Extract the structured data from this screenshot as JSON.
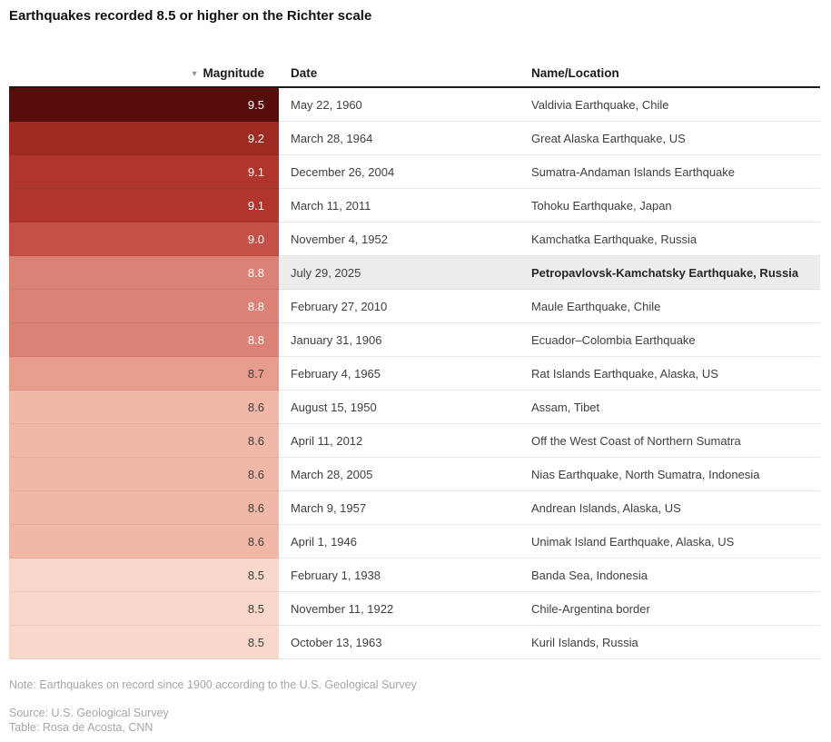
{
  "title": "Earthquakes recorded 8.5 or higher on the Richter scale",
  "header": {
    "sort_icon": "▼",
    "magnitude_label": "Magnitude",
    "date_label": "Date",
    "name_label": "Name/Location"
  },
  "footer": {
    "note": "Note: Earthquakes on record since 1900 according to the U.S. Geological Survey",
    "source": "Source: U.S. Geological Survey",
    "credit": "Table: Rosa de Acosta, CNN"
  },
  "colors": {
    "header_rule": "#1a1a1a",
    "row_divider": "#e9e9e9",
    "highlight_background": "#ececec",
    "light_text_on_bar": "#ffffff",
    "dark_text_on_bar": "#3c3c3c"
  },
  "chart_data": {
    "type": "table",
    "title": "Earthquakes recorded 8.5 or higher on the Richter scale",
    "columns": [
      "Magnitude",
      "Date",
      "Name/Location"
    ],
    "sorted_by": "Magnitude",
    "sort_direction": "descending",
    "highlighted_row_index": 5,
    "color_scale": {
      "9.5": "#570e0a",
      "9.2": "#9e2a22",
      "9.1": "#b0362d",
      "9.0": "#c35148",
      "8.8": "#dc8175",
      "8.7": "#e89c8e",
      "8.6": "#f1b8a7",
      "8.5": "#f8d8c9"
    },
    "rows": [
      {
        "magnitude": "9.5",
        "date": "May 22, 1960",
        "name": "Valdivia Earthquake, Chile",
        "bar_color": "#570e0a",
        "text_color": "#ffffff",
        "highlighted": false
      },
      {
        "magnitude": "9.2",
        "date": "March 28, 1964",
        "name": "Great Alaska Earthquake, US",
        "bar_color": "#9e2a22",
        "text_color": "#ffffff",
        "highlighted": false
      },
      {
        "magnitude": "9.1",
        "date": "December 26, 2004",
        "name": "Sumatra-Andaman Islands Earthquake",
        "bar_color": "#b0362d",
        "text_color": "#ffffff",
        "highlighted": false
      },
      {
        "magnitude": "9.1",
        "date": "March 11, 2011",
        "name": "Tohoku Earthquake, Japan",
        "bar_color": "#b0362d",
        "text_color": "#ffffff",
        "highlighted": false
      },
      {
        "magnitude": "9.0",
        "date": "November 4, 1952",
        "name": "Kamchatka Earthquake, Russia",
        "bar_color": "#c35148",
        "text_color": "#ffffff",
        "highlighted": false
      },
      {
        "magnitude": "8.8",
        "date": "July 29, 2025",
        "name": "Petropavlovsk-Kamchatsky Earthquake, Russia",
        "bar_color": "#dc8175",
        "text_color": "#ffffff",
        "highlighted": true
      },
      {
        "magnitude": "8.8",
        "date": "February 27, 2010",
        "name": "Maule Earthquake, Chile",
        "bar_color": "#dc8175",
        "text_color": "#ffffff",
        "highlighted": false
      },
      {
        "magnitude": "8.8",
        "date": "January 31, 1906",
        "name": "Ecuador–Colombia Earthquake",
        "bar_color": "#dc8175",
        "text_color": "#ffffff",
        "highlighted": false
      },
      {
        "magnitude": "8.7",
        "date": "February 4, 1965",
        "name": "Rat Islands Earthquake, Alaska, US",
        "bar_color": "#e89c8e",
        "text_color": "#3c3c3c",
        "highlighted": false
      },
      {
        "magnitude": "8.6",
        "date": "August 15, 1950",
        "name": "Assam, Tibet",
        "bar_color": "#f1b8a7",
        "text_color": "#3c3c3c",
        "highlighted": false
      },
      {
        "magnitude": "8.6",
        "date": "April 11, 2012",
        "name": "Off the West Coast of Northern Sumatra",
        "bar_color": "#f1b8a7",
        "text_color": "#3c3c3c",
        "highlighted": false
      },
      {
        "magnitude": "8.6",
        "date": "March 28, 2005",
        "name": "Nias Earthquake, North Sumatra, Indonesia",
        "bar_color": "#f1b8a7",
        "text_color": "#3c3c3c",
        "highlighted": false
      },
      {
        "magnitude": "8.6",
        "date": "March 9, 1957",
        "name": "Andrean Islands, Alaska, US",
        "bar_color": "#f1b8a7",
        "text_color": "#3c3c3c",
        "highlighted": false
      },
      {
        "magnitude": "8.6",
        "date": "April 1, 1946",
        "name": "Unimak Island Earthquake, Alaska, US",
        "bar_color": "#f1b8a7",
        "text_color": "#3c3c3c",
        "highlighted": false
      },
      {
        "magnitude": "8.5",
        "date": "February 1, 1938",
        "name": "Banda Sea, Indonesia",
        "bar_color": "#f8d8c9",
        "text_color": "#3c3c3c",
        "highlighted": false
      },
      {
        "magnitude": "8.5",
        "date": "November 11, 1922",
        "name": "Chile-Argentina border",
        "bar_color": "#f8d8c9",
        "text_color": "#3c3c3c",
        "highlighted": false
      },
      {
        "magnitude": "8.5",
        "date": "October 13, 1963",
        "name": "Kuril Islands, Russia",
        "bar_color": "#f8d8c9",
        "text_color": "#3c3c3c",
        "highlighted": false
      }
    ]
  }
}
